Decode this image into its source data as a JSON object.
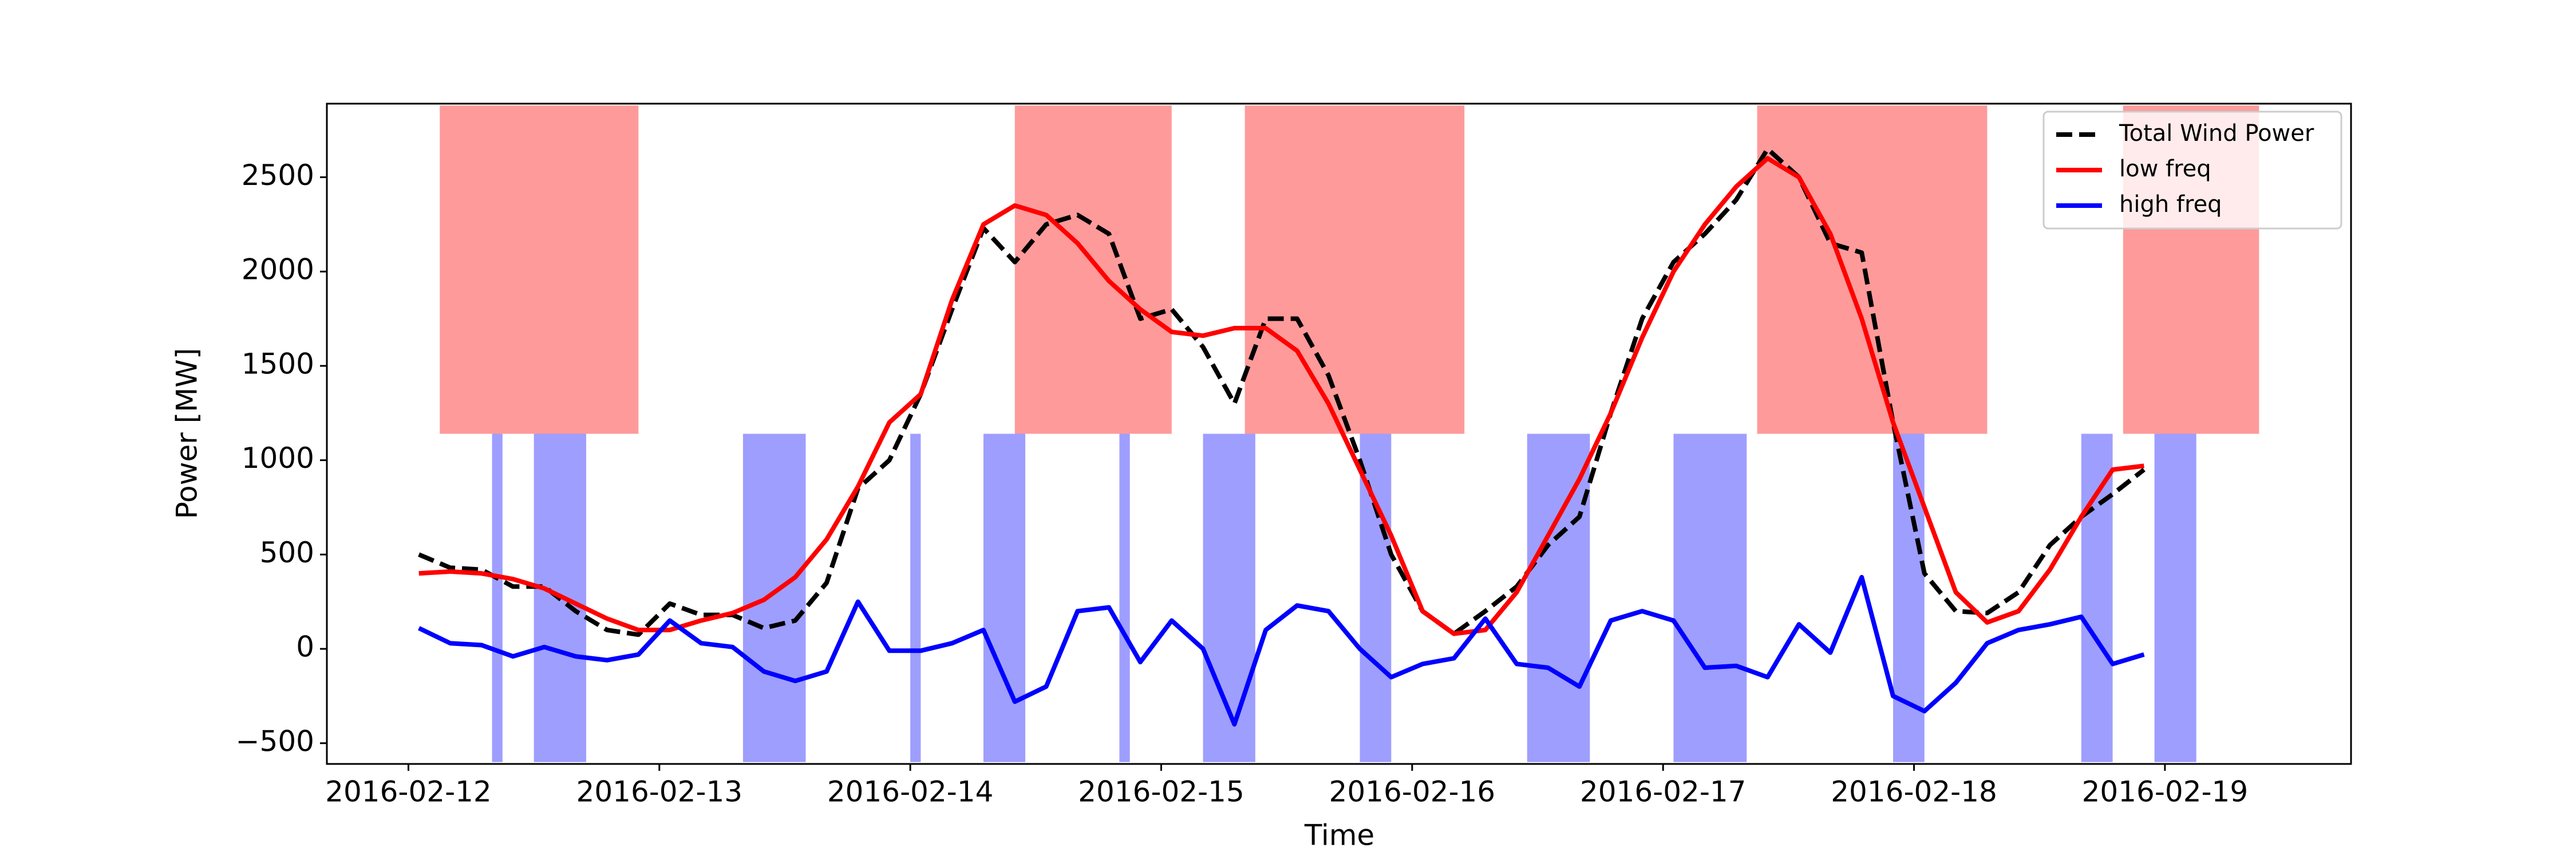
{
  "chart_data": {
    "type": "line",
    "xlabel": "Time",
    "ylabel": "Power [MW]",
    "x": [
      "2016-02-12 01:00",
      "2016-02-12 04:00",
      "2016-02-12 07:00",
      "2016-02-12 10:00",
      "2016-02-12 13:00",
      "2016-02-12 16:00",
      "2016-02-12 19:00",
      "2016-02-12 22:00",
      "2016-02-13 01:00",
      "2016-02-13 04:00",
      "2016-02-13 07:00",
      "2016-02-13 10:00",
      "2016-02-13 13:00",
      "2016-02-13 16:00",
      "2016-02-13 19:00",
      "2016-02-13 22:00",
      "2016-02-14 01:00",
      "2016-02-14 04:00",
      "2016-02-14 07:00",
      "2016-02-14 10:00",
      "2016-02-14 13:00",
      "2016-02-14 16:00",
      "2016-02-14 19:00",
      "2016-02-14 22:00",
      "2016-02-15 01:00",
      "2016-02-15 04:00",
      "2016-02-15 07:00",
      "2016-02-15 10:00",
      "2016-02-15 13:00",
      "2016-02-15 16:00",
      "2016-02-15 19:00",
      "2016-02-15 22:00",
      "2016-02-16 01:00",
      "2016-02-16 04:00",
      "2016-02-16 07:00",
      "2016-02-16 10:00",
      "2016-02-16 13:00",
      "2016-02-16 16:00",
      "2016-02-16 19:00",
      "2016-02-16 22:00",
      "2016-02-17 01:00",
      "2016-02-17 04:00",
      "2016-02-17 07:00",
      "2016-02-17 10:00",
      "2016-02-17 13:00",
      "2016-02-17 16:00",
      "2016-02-17 19:00",
      "2016-02-17 22:00",
      "2016-02-18 01:00",
      "2016-02-18 04:00",
      "2016-02-18 07:00",
      "2016-02-18 10:00",
      "2016-02-18 13:00",
      "2016-02-18 16:00",
      "2016-02-18 19:00",
      "2016-02-18 22:00"
    ],
    "series": [
      {
        "name": "Total Wind Power",
        "color": "#000000",
        "style": "dashed",
        "values": [
          500,
          430,
          420,
          330,
          330,
          200,
          100,
          75,
          240,
          180,
          180,
          110,
          150,
          350,
          850,
          1000,
          1350,
          1800,
          2230,
          2050,
          2250,
          2300,
          2200,
          1750,
          1800,
          1600,
          1300,
          1750,
          1750,
          1450,
          1000,
          500,
          200,
          80,
          200,
          330,
          550,
          700,
          1250,
          1750,
          2050,
          2200,
          2380,
          2650,
          2500,
          2150,
          2100,
          1200,
          400,
          200,
          190,
          300,
          550,
          700,
          820,
          950
        ]
      },
      {
        "name": "low freq",
        "color": "#ff0000",
        "style": "solid",
        "values": [
          400,
          410,
          400,
          370,
          320,
          240,
          160,
          100,
          100,
          150,
          190,
          260,
          380,
          580,
          860,
          1200,
          1350,
          1850,
          2250,
          2350,
          2300,
          2150,
          1950,
          1800,
          1680,
          1660,
          1700,
          1700,
          1580,
          1300,
          950,
          600,
          200,
          80,
          100,
          300,
          600,
          900,
          1250,
          1650,
          2000,
          2250,
          2450,
          2600,
          2500,
          2200,
          1750,
          1200,
          750,
          300,
          140,
          200,
          420,
          700,
          950,
          970
        ]
      },
      {
        "name": "high freq",
        "color": "#0000ff",
        "style": "solid",
        "values": [
          110,
          30,
          20,
          -40,
          10,
          -40,
          -60,
          -30,
          150,
          30,
          10,
          -120,
          -170,
          -120,
          250,
          -10,
          -10,
          30,
          100,
          -280,
          -200,
          200,
          220,
          -70,
          150,
          0,
          -400,
          100,
          230,
          200,
          0,
          -150,
          -80,
          -50,
          160,
          -80,
          -100,
          -200,
          150,
          200,
          150,
          -100,
          -90,
          -150,
          130,
          -20,
          380,
          -250,
          -330,
          -180,
          30,
          100,
          130,
          170,
          -80,
          -30
        ]
      }
    ],
    "spans": [
      {
        "color": "#ff9a9a",
        "y": [
          1140,
          2880
        ],
        "ranges": [
          [
            "2016-02-12 03:00",
            "2016-02-12 22:00"
          ],
          [
            "2016-02-14 10:00",
            "2016-02-15 01:00"
          ],
          [
            "2016-02-15 08:00",
            "2016-02-16 05:00"
          ],
          [
            "2016-02-17 09:00",
            "2016-02-18 07:00"
          ],
          [
            "2016-02-18 20:00",
            "2016-02-19 09:00"
          ]
        ]
      },
      {
        "color": "#9e9eff",
        "y": [
          -600,
          1140
        ],
        "ranges": [
          [
            "2016-02-12 08:00",
            "2016-02-12 09:00"
          ],
          [
            "2016-02-12 12:00",
            "2016-02-12 17:00"
          ],
          [
            "2016-02-13 08:00",
            "2016-02-13 14:00"
          ],
          [
            "2016-02-14 00:00",
            "2016-02-14 01:00"
          ],
          [
            "2016-02-14 07:00",
            "2016-02-14 11:00"
          ],
          [
            "2016-02-14 20:00",
            "2016-02-14 21:00"
          ],
          [
            "2016-02-15 04:00",
            "2016-02-15 09:00"
          ],
          [
            "2016-02-15 19:00",
            "2016-02-15 22:00"
          ],
          [
            "2016-02-16 11:00",
            "2016-02-16 17:00"
          ],
          [
            "2016-02-17 01:00",
            "2016-02-17 08:00"
          ],
          [
            "2016-02-17 22:00",
            "2016-02-18 01:00"
          ],
          [
            "2016-02-18 16:00",
            "2016-02-18 19:00"
          ],
          [
            "2016-02-18 23:00",
            "2016-02-19 03:00"
          ]
        ]
      }
    ],
    "xlim": [
      "2016-02-11 16:12",
      "2016-02-19 17:48"
    ],
    "xticks": [
      "2016-02-12",
      "2016-02-13",
      "2016-02-14",
      "2016-02-15",
      "2016-02-16",
      "2016-02-17",
      "2016-02-18",
      "2016-02-19"
    ],
    "ylim": [
      -610,
      2890
    ],
    "yticks": [
      {
        "value": -500,
        "label": "−500"
      },
      0,
      500,
      1000,
      1500,
      2000,
      2500
    ],
    "grid": false,
    "legend": "upper right"
  }
}
